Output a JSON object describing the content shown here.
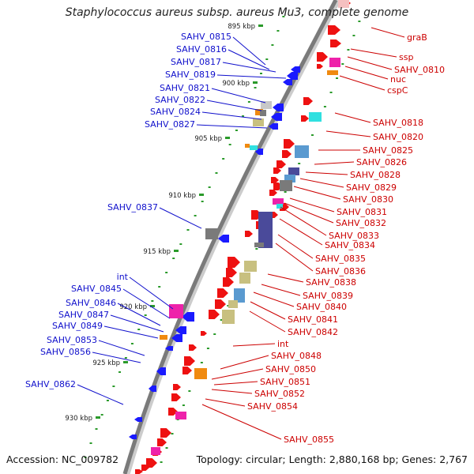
{
  "title": "Staphylococcus aureus subsp. aureus Mu3, complete genome",
  "accession": "Accession: NC_009782",
  "summary": "Topology: circular; Length: 2,880,168 bp; Genes: 2,767",
  "colors": {
    "backbone": "#7a7a7a",
    "left_label": "#1010cc",
    "right_label": "#cc0000",
    "left_strand": "#1a1aff",
    "right_strand": "#ee1111",
    "tick": "#2a9a2a",
    "orange": "#f08a10",
    "gray_block": "#7a7a7a",
    "light_gray": "#c8c8c8",
    "olive": "#c8c080",
    "steel_blue": "#5a9ad0",
    "cyan": "#30e0e0",
    "magenta": "#ee22aa",
    "slate": "#4a4a9a",
    "pink_light": "#f5c0c0"
  },
  "scale_labels": [
    "895 kbp",
    "900 kbp",
    "905 kbp",
    "910 kbp",
    "915 kbp",
    "920 kbp",
    "925 kbp",
    "930 kbp"
  ],
  "left_genes": [
    "SAHV_0815",
    "SAHV_0816",
    "SAHV_0817",
    "SAHV_0819",
    "SAHV_0821",
    "SAHV_0822",
    "SAHV_0824",
    "SAHV_0827",
    "SAHV_0837",
    "int",
    "SAHV_0845",
    "SAHV_0846",
    "SAHV_0847",
    "SAHV_0849",
    "SAHV_0853",
    "SAHV_0856",
    "SAHV_0862"
  ],
  "right_genes": [
    "graB",
    "ssp",
    "SAHV_0810",
    "nuc",
    "cspC",
    "SAHV_0818",
    "SAHV_0820",
    "SAHV_0825",
    "SAHV_0826",
    "SAHV_0828",
    "SAHV_0829",
    "SAHV_0830",
    "SAHV_0831",
    "SAHV_0832",
    "SAHV_0833",
    "SAHV_0834",
    "SAHV_0835",
    "SAHV_0836",
    "SAHV_0838",
    "SAHV_0839",
    "SAHV_0840",
    "SAHV_0841",
    "SAHV_0842",
    "int",
    "SAHV_0848",
    "SAHV_0850",
    "SAHV_0851",
    "SAHV_0852",
    "SAHV_0854",
    "SAHV_0855"
  ]
}
